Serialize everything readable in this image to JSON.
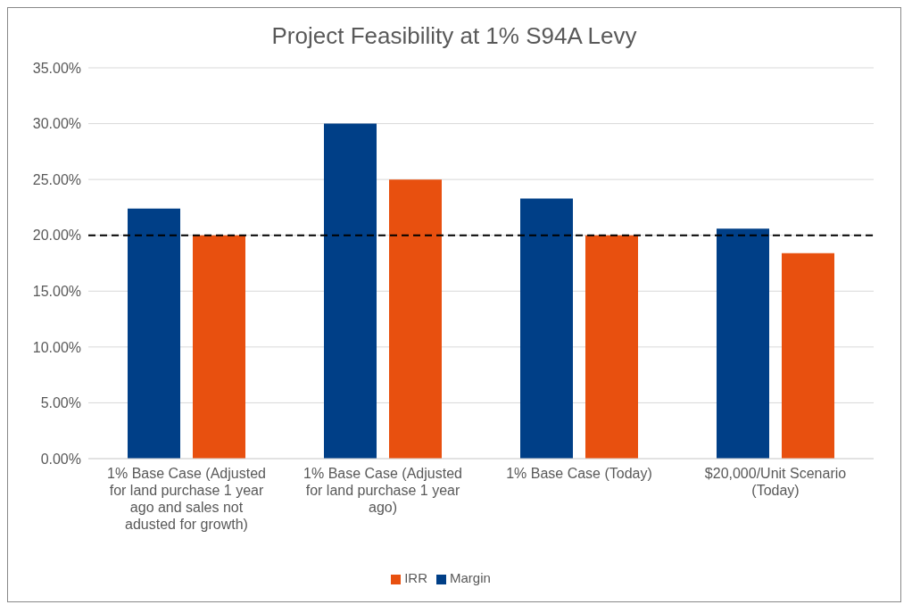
{
  "chart_data": {
    "type": "bar",
    "title": "Project Feasibility at 1% S94A Levy",
    "categories": [
      "1% Base Case (Adjusted for land purchase 1 year ago and sales not adusted for growth)",
      "1% Base Case (Adjusted for land purchase 1 year ago)",
      "1% Base Case (Today)",
      "$20,000/Unit Scenario (Today)"
    ],
    "series": [
      {
        "name": "Margin",
        "color": "#003f87",
        "values": [
          22.4,
          30.0,
          23.3,
          20.6
        ]
      },
      {
        "name": "IRR",
        "color": "#e8500f",
        "values": [
          20.0,
          25.0,
          20.0,
          18.4
        ]
      }
    ],
    "ylim": [
      0,
      35
    ],
    "yticks": [
      {
        "value": 0,
        "label": "0.00%"
      },
      {
        "value": 5,
        "label": "5.00%"
      },
      {
        "value": 10,
        "label": "10.00%"
      },
      {
        "value": 15,
        "label": "15.00%"
      },
      {
        "value": 20,
        "label": "20.00%"
      },
      {
        "value": 25,
        "label": "25.00%"
      },
      {
        "value": 30,
        "label": "30.00%"
      },
      {
        "value": 35,
        "label": "35.00%"
      }
    ],
    "ref_lines": [
      {
        "axis": "y",
        "value": 20,
        "color": "#000000",
        "line_style": "dashed"
      }
    ],
    "grid": "y",
    "legend": "bottom"
  }
}
